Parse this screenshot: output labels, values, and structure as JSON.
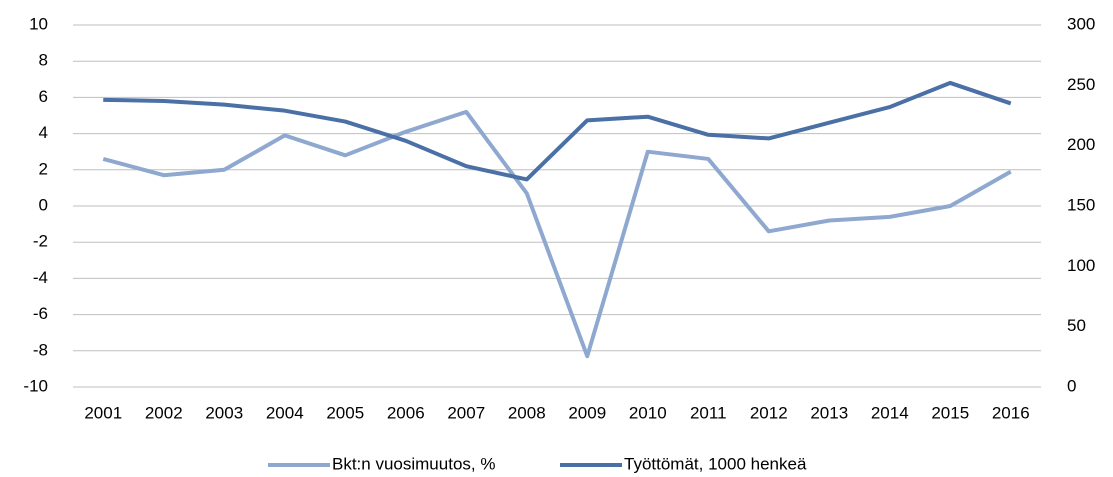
{
  "chart_data": {
    "type": "line",
    "categories": [
      "2001",
      "2002",
      "2003",
      "2004",
      "2005",
      "2006",
      "2007",
      "2008",
      "2009",
      "2010",
      "2011",
      "2012",
      "2013",
      "2014",
      "2015",
      "2016"
    ],
    "series": [
      {
        "name": "Bkt:n vuosimuutos, %",
        "color": "#8fa8d0",
        "values": [
          2.6,
          1.7,
          2.0,
          3.9,
          2.8,
          4.1,
          5.2,
          0.7,
          -8.3,
          3.0,
          2.6,
          -1.4,
          -0.8,
          -0.6,
          0.0,
          1.9
        ]
      },
      {
        "name": "Työttömät, 1000 henkeä",
        "color": "#4a70a6",
        "axis": "y2",
        "values": [
          238,
          237,
          234,
          229,
          220,
          204,
          183,
          172,
          221,
          224,
          209,
          206,
          219,
          232,
          252,
          235
        ]
      }
    ],
    "ylim": [
      -10,
      10
    ],
    "yticks": [
      -10,
      -8,
      -6,
      -4,
      -2,
      0,
      2,
      4,
      6,
      8,
      10
    ],
    "y2lim": [
      0,
      300
    ],
    "y2ticks": [
      0,
      50,
      100,
      150,
      200,
      250,
      300
    ],
    "grid": true,
    "legend": "bottom"
  }
}
